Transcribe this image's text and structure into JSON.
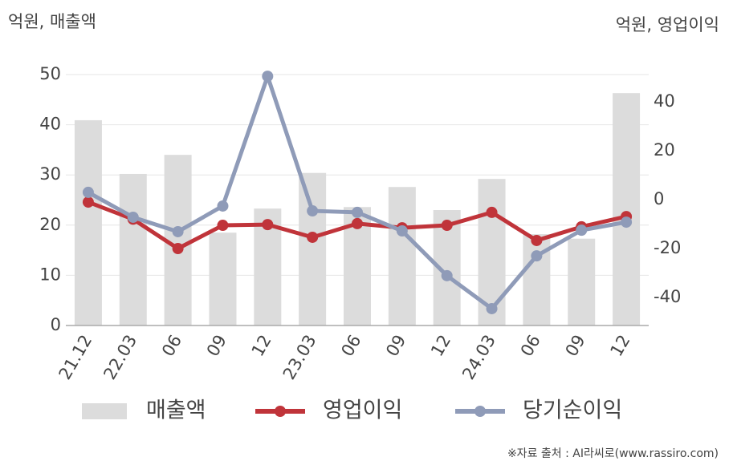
{
  "chart_data": {
    "type": "combo",
    "y_label": "억원, 매출액",
    "y2_label": "억원, 영업이익",
    "categories": [
      "21.12",
      "22.03",
      "06",
      "09",
      "12",
      "23.03",
      "06",
      "09",
      "12",
      "24.03",
      "06",
      "09",
      "12"
    ],
    "series": [
      {
        "name": "매출액",
        "type": "bar",
        "color": "#dcdcdc",
        "axis": "y",
        "values": [
          40.9,
          30.2,
          34,
          18.5,
          23.3,
          30.4,
          23.6,
          27.6,
          23,
          29.2,
          18.2,
          17.3,
          46.3
        ]
      },
      {
        "name": "영업이익",
        "type": "line",
        "color": "#c0343a",
        "axis": "y2",
        "values": [
          -1,
          -8,
          -20,
          -10.5,
          -10.2,
          -15.4,
          -9.8,
          -11.5,
          -10.5,
          -5.2,
          -16.7,
          -11.1,
          -6.9
        ]
      },
      {
        "name": "당기순이익",
        "type": "line",
        "color": "#8f9bb8",
        "axis": "y2",
        "values": [
          3,
          -7.2,
          -13.1,
          -2.6,
          50.5,
          -4.6,
          -5.2,
          -12.8,
          -31.1,
          -44.6,
          -23,
          -12.5,
          -9.2
        ]
      }
    ],
    "ylim": [
      0,
      50
    ],
    "yticks": [
      0,
      10,
      20,
      30,
      40,
      50
    ],
    "y2lim": [
      -51.5,
      51.2
    ],
    "y2ticks": [
      -40,
      -20,
      0,
      20,
      40
    ],
    "grid": true,
    "source": "※자료 출처 : AI라씨로(www.rassiro.com)"
  }
}
